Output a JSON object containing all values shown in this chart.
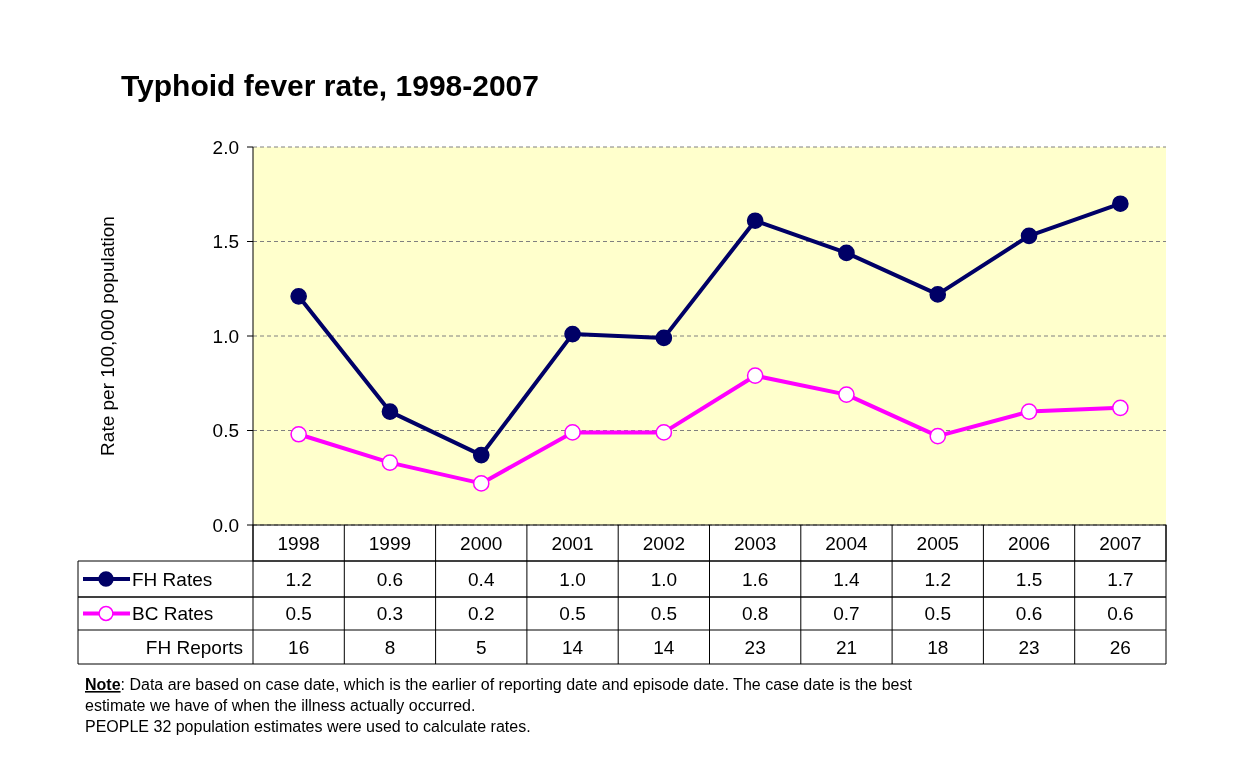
{
  "chart_data": [
    {
      "type": "line",
      "title": "Typhoid fever rate, 1998-2007",
      "ylabel": "Rate per 100,000 population",
      "categories": [
        "1998",
        "1999",
        "2000",
        "2001",
        "2002",
        "2003",
        "2004",
        "2005",
        "2006",
        "2007"
      ],
      "series": [
        {
          "name": "FH Rates",
          "color": "#000066",
          "values": [
            1.21,
            0.6,
            0.37,
            1.01,
            0.99,
            1.61,
            1.44,
            1.22,
            1.53,
            1.7
          ],
          "value_labels": [
            "1.2",
            "0.6",
            "0.4",
            "1.0",
            "1.0",
            "1.6",
            "1.4",
            "1.2",
            "1.5",
            "1.7"
          ]
        },
        {
          "name": "BC Rates",
          "color": "#ff00ff",
          "values": [
            0.48,
            0.33,
            0.22,
            0.49,
            0.49,
            0.79,
            0.69,
            0.47,
            0.6,
            0.62
          ],
          "value_labels": [
            "0.5",
            "0.3",
            "0.2",
            "0.5",
            "0.5",
            "0.8",
            "0.7",
            "0.5",
            "0.6",
            "0.6"
          ]
        }
      ],
      "ylim": [
        0,
        2
      ],
      "yticks": [
        {
          "value": 0,
          "label": "0.0"
        },
        {
          "value": 0.5,
          "label": "0.5"
        },
        {
          "value": 1,
          "label": "1.0"
        },
        {
          "value": 1.5,
          "label": "1.5"
        },
        {
          "value": 2,
          "label": "2.0"
        }
      ],
      "grid": "y",
      "marker": "circle",
      "line_style": "solid",
      "legend": "bottom left",
      "annotations": [
        "Note: Data are based on case date, which is the earlier of reporting date and episode date. The case date is the best estimate we have of when the illness actually occurred.",
        "PEOPLE 32 population estimates were used to calculate rates."
      ]
    },
    {
      "type": "other",
      "series": [
        {
          "name": "FH Reports",
          "values": [
            16,
            8,
            5,
            14,
            14,
            23,
            21,
            18,
            23,
            26
          ]
        }
      ],
      "data_labels": true
    }
  ]
}
